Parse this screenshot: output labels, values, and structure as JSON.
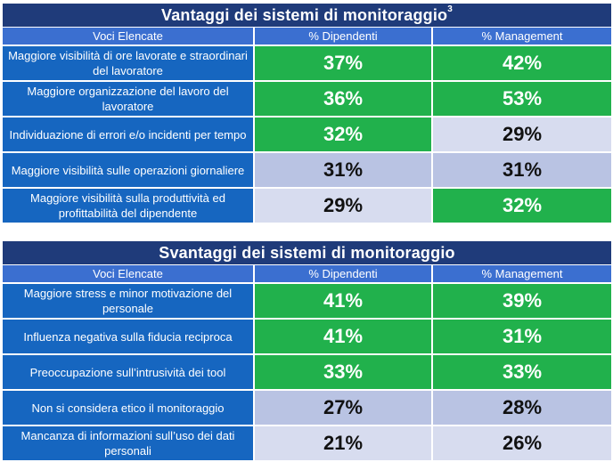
{
  "colors": {
    "title_bg": "#1f3b7a",
    "header_bg": "#3b6fd0",
    "label_bg": "#1666c0",
    "green": "#21b14c",
    "pale": "#d7dcef",
    "mid": "#b9c3e3"
  },
  "advantages": {
    "title": "Vantaggi dei sistemi di monitoraggio",
    "title_sup": "3",
    "headers": [
      "Voci Elencate",
      "% Dipendenti",
      "% Management"
    ],
    "rows": [
      {
        "label": "Maggiore visibilità di ore lavorate e straordinari del lavoratore",
        "dip": "37%",
        "man": "42%"
      },
      {
        "label": "Maggiore organizzazione del lavoro del lavoratore",
        "dip": "36%",
        "man": "53%"
      },
      {
        "label": "Individuazione di errori e/o incidenti per tempo",
        "dip": "32%",
        "man": "29%"
      },
      {
        "label": "Maggiore visibilità sulle operazioni giornaliere",
        "dip": "31%",
        "man": "31%"
      },
      {
        "label": "Maggiore visibilità sulla produttività ed profittabilità del dipendente",
        "dip": "29%",
        "man": "32%"
      }
    ]
  },
  "disadvantages": {
    "title": "Svantaggi dei sistemi di monitoraggio",
    "headers": [
      "Voci Elencate",
      "% Dipendenti",
      "% Management"
    ],
    "rows": [
      {
        "label": "Maggiore stress e minor motivazione del personale",
        "dip": "41%",
        "man": "39%"
      },
      {
        "label": "Influenza negativa sulla fiducia reciproca",
        "dip": "41%",
        "man": "31%"
      },
      {
        "label": "Preoccupazione sull’intrusività dei tool",
        "dip": "33%",
        "man": "33%"
      },
      {
        "label": "Non si considera etico il monitoraggio",
        "dip": "27%",
        "man": "28%"
      },
      {
        "label": "Mancanza di informazioni sull’uso dei dati personali",
        "dip": "21%",
        "man": "26%"
      }
    ]
  }
}
